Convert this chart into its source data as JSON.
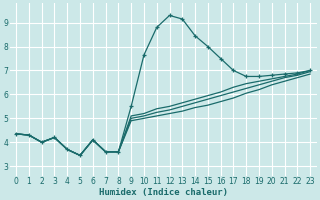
{
  "xlabel": "Humidex (Indice chaleur)",
  "bg_color": "#cce8e8",
  "line_color": "#1a6b6b",
  "grid_color": "#ffffff",
  "xlim": [
    -0.5,
    23.5
  ],
  "ylim": [
    2.6,
    9.8
  ],
  "xticks": [
    0,
    1,
    2,
    3,
    4,
    5,
    6,
    7,
    8,
    9,
    10,
    11,
    12,
    13,
    14,
    15,
    16,
    17,
    18,
    19,
    20,
    21,
    22,
    23
  ],
  "yticks": [
    3,
    4,
    5,
    6,
    7,
    8,
    9
  ],
  "line1_x": [
    0,
    1,
    2,
    3,
    4,
    5,
    6,
    7,
    8,
    9,
    10,
    11,
    12,
    13,
    14,
    15,
    16,
    17,
    18,
    19,
    20,
    21,
    22,
    23
  ],
  "line1_y": [
    4.35,
    4.3,
    4.0,
    4.2,
    3.7,
    3.45,
    4.1,
    3.6,
    3.6,
    4.9,
    5.0,
    5.1,
    5.2,
    5.3,
    5.45,
    5.55,
    5.7,
    5.85,
    6.05,
    6.2,
    6.4,
    6.55,
    6.7,
    6.85
  ],
  "line2_x": [
    0,
    1,
    2,
    3,
    4,
    5,
    6,
    7,
    8,
    9,
    10,
    11,
    12,
    13,
    14,
    15,
    16,
    17,
    18,
    19,
    20,
    21,
    22,
    23
  ],
  "line2_y": [
    4.35,
    4.3,
    4.0,
    4.2,
    3.7,
    3.45,
    4.1,
    3.6,
    3.6,
    5.0,
    5.1,
    5.25,
    5.35,
    5.5,
    5.65,
    5.8,
    5.95,
    6.1,
    6.25,
    6.4,
    6.55,
    6.7,
    6.8,
    6.95
  ],
  "line3_x": [
    0,
    1,
    2,
    3,
    4,
    5,
    6,
    7,
    8,
    9,
    10,
    11,
    12,
    13,
    14,
    15,
    16,
    17,
    18,
    19,
    20,
    21,
    22,
    23
  ],
  "line3_y": [
    4.35,
    4.3,
    4.0,
    4.2,
    3.7,
    3.45,
    4.1,
    3.6,
    3.6,
    5.1,
    5.2,
    5.4,
    5.5,
    5.65,
    5.8,
    5.95,
    6.1,
    6.3,
    6.45,
    6.55,
    6.65,
    6.75,
    6.85,
    7.0
  ],
  "line_main_x": [
    0,
    1,
    2,
    3,
    4,
    5,
    6,
    7,
    8,
    9,
    10,
    11,
    12,
    13,
    14,
    15,
    16,
    17,
    18,
    19,
    20,
    21,
    22,
    23
  ],
  "line_main_y": [
    4.35,
    4.3,
    4.0,
    4.2,
    3.7,
    3.45,
    4.1,
    3.6,
    3.6,
    5.5,
    7.65,
    8.8,
    9.3,
    9.15,
    8.45,
    8.0,
    7.5,
    7.0,
    6.75,
    6.75,
    6.8,
    6.85,
    6.9,
    7.0
  ]
}
